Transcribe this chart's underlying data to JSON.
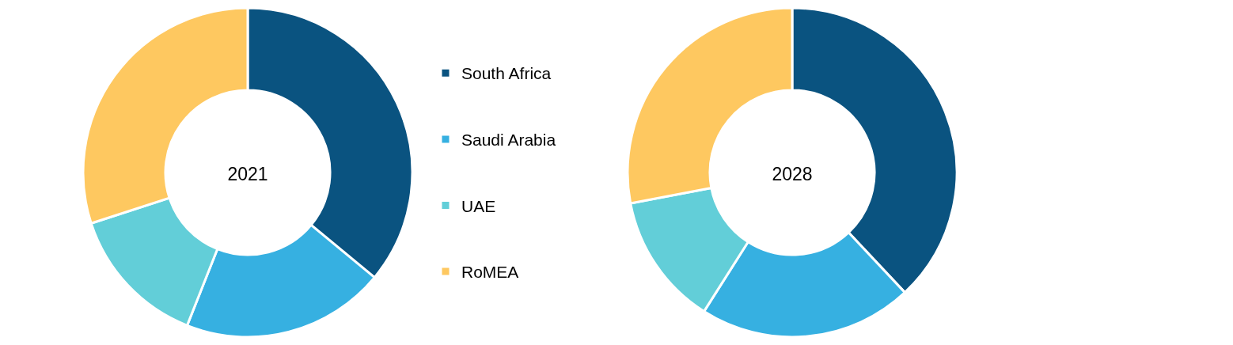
{
  "chart_data": {
    "type": "donut",
    "categories": [
      "South Africa",
      "Saudi Arabia",
      "UAE",
      "RoMEA"
    ],
    "colors": [
      "#0a5380",
      "#36b0e1",
      "#62ced8",
      "#fec860"
    ],
    "series": [
      {
        "name": "2021",
        "values": [
          36,
          20,
          14,
          30
        ]
      },
      {
        "name": "2028",
        "values": [
          38,
          21,
          13,
          28
        ]
      }
    ],
    "legend": "right"
  }
}
